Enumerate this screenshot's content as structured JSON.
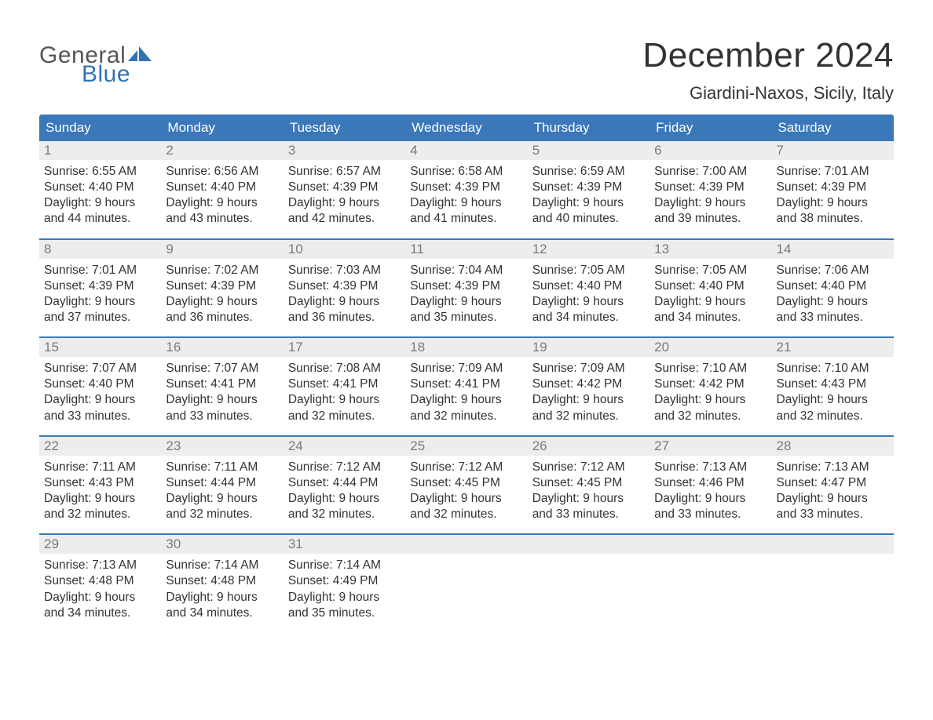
{
  "logo": {
    "text_general": "General",
    "text_blue": "Blue",
    "general_color": "#565656",
    "blue_color": "#2f74b5",
    "shape_color": "#2f74b5"
  },
  "title": {
    "month": "December 2024",
    "location": "Giardini-Naxos, Sicily, Italy",
    "month_fontsize": 44,
    "location_fontsize": 22,
    "text_color": "#333333"
  },
  "colors": {
    "header_bg": "#3a78b9",
    "header_text": "#ffffff",
    "daynum_bg": "#ededed",
    "daynum_text": "#7a7a7a",
    "body_text": "#333333",
    "week_border": "#3a78b9",
    "page_bg": "#ffffff"
  },
  "weekdays": [
    "Sunday",
    "Monday",
    "Tuesday",
    "Wednesday",
    "Thursday",
    "Friday",
    "Saturday"
  ],
  "labels": {
    "sunrise": "Sunrise:",
    "sunset": "Sunset:",
    "daylight_prefix": "Daylight:",
    "daylight_unit1": "hours",
    "daylight_conj": "and",
    "daylight_unit2": "minutes."
  },
  "weeks": [
    [
      {
        "n": "1",
        "sunrise": "6:55 AM",
        "sunset": "4:40 PM",
        "dl_h": 9,
        "dl_m": 44
      },
      {
        "n": "2",
        "sunrise": "6:56 AM",
        "sunset": "4:40 PM",
        "dl_h": 9,
        "dl_m": 43
      },
      {
        "n": "3",
        "sunrise": "6:57 AM",
        "sunset": "4:39 PM",
        "dl_h": 9,
        "dl_m": 42
      },
      {
        "n": "4",
        "sunrise": "6:58 AM",
        "sunset": "4:39 PM",
        "dl_h": 9,
        "dl_m": 41
      },
      {
        "n": "5",
        "sunrise": "6:59 AM",
        "sunset": "4:39 PM",
        "dl_h": 9,
        "dl_m": 40
      },
      {
        "n": "6",
        "sunrise": "7:00 AM",
        "sunset": "4:39 PM",
        "dl_h": 9,
        "dl_m": 39
      },
      {
        "n": "7",
        "sunrise": "7:01 AM",
        "sunset": "4:39 PM",
        "dl_h": 9,
        "dl_m": 38
      }
    ],
    [
      {
        "n": "8",
        "sunrise": "7:01 AM",
        "sunset": "4:39 PM",
        "dl_h": 9,
        "dl_m": 37
      },
      {
        "n": "9",
        "sunrise": "7:02 AM",
        "sunset": "4:39 PM",
        "dl_h": 9,
        "dl_m": 36
      },
      {
        "n": "10",
        "sunrise": "7:03 AM",
        "sunset": "4:39 PM",
        "dl_h": 9,
        "dl_m": 36
      },
      {
        "n": "11",
        "sunrise": "7:04 AM",
        "sunset": "4:39 PM",
        "dl_h": 9,
        "dl_m": 35
      },
      {
        "n": "12",
        "sunrise": "7:05 AM",
        "sunset": "4:40 PM",
        "dl_h": 9,
        "dl_m": 34
      },
      {
        "n": "13",
        "sunrise": "7:05 AM",
        "sunset": "4:40 PM",
        "dl_h": 9,
        "dl_m": 34
      },
      {
        "n": "14",
        "sunrise": "7:06 AM",
        "sunset": "4:40 PM",
        "dl_h": 9,
        "dl_m": 33
      }
    ],
    [
      {
        "n": "15",
        "sunrise": "7:07 AM",
        "sunset": "4:40 PM",
        "dl_h": 9,
        "dl_m": 33
      },
      {
        "n": "16",
        "sunrise": "7:07 AM",
        "sunset": "4:41 PM",
        "dl_h": 9,
        "dl_m": 33
      },
      {
        "n": "17",
        "sunrise": "7:08 AM",
        "sunset": "4:41 PM",
        "dl_h": 9,
        "dl_m": 32
      },
      {
        "n": "18",
        "sunrise": "7:09 AM",
        "sunset": "4:41 PM",
        "dl_h": 9,
        "dl_m": 32
      },
      {
        "n": "19",
        "sunrise": "7:09 AM",
        "sunset": "4:42 PM",
        "dl_h": 9,
        "dl_m": 32
      },
      {
        "n": "20",
        "sunrise": "7:10 AM",
        "sunset": "4:42 PM",
        "dl_h": 9,
        "dl_m": 32
      },
      {
        "n": "21",
        "sunrise": "7:10 AM",
        "sunset": "4:43 PM",
        "dl_h": 9,
        "dl_m": 32
      }
    ],
    [
      {
        "n": "22",
        "sunrise": "7:11 AM",
        "sunset": "4:43 PM",
        "dl_h": 9,
        "dl_m": 32
      },
      {
        "n": "23",
        "sunrise": "7:11 AM",
        "sunset": "4:44 PM",
        "dl_h": 9,
        "dl_m": 32
      },
      {
        "n": "24",
        "sunrise": "7:12 AM",
        "sunset": "4:44 PM",
        "dl_h": 9,
        "dl_m": 32
      },
      {
        "n": "25",
        "sunrise": "7:12 AM",
        "sunset": "4:45 PM",
        "dl_h": 9,
        "dl_m": 32
      },
      {
        "n": "26",
        "sunrise": "7:12 AM",
        "sunset": "4:45 PM",
        "dl_h": 9,
        "dl_m": 33
      },
      {
        "n": "27",
        "sunrise": "7:13 AM",
        "sunset": "4:46 PM",
        "dl_h": 9,
        "dl_m": 33
      },
      {
        "n": "28",
        "sunrise": "7:13 AM",
        "sunset": "4:47 PM",
        "dl_h": 9,
        "dl_m": 33
      }
    ],
    [
      {
        "n": "29",
        "sunrise": "7:13 AM",
        "sunset": "4:48 PM",
        "dl_h": 9,
        "dl_m": 34
      },
      {
        "n": "30",
        "sunrise": "7:14 AM",
        "sunset": "4:48 PM",
        "dl_h": 9,
        "dl_m": 34
      },
      {
        "n": "31",
        "sunrise": "7:14 AM",
        "sunset": "4:49 PM",
        "dl_h": 9,
        "dl_m": 35
      },
      {
        "empty": true
      },
      {
        "empty": true
      },
      {
        "empty": true
      },
      {
        "empty": true
      }
    ]
  ]
}
